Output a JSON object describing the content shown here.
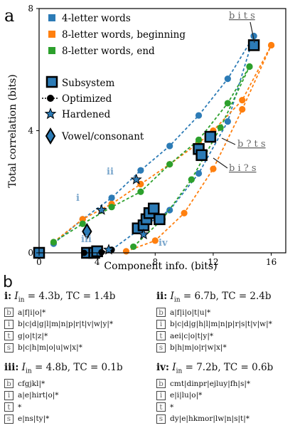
{
  "panel_a_label": "a",
  "panel_b_label": "b",
  "legend": {
    "series": [
      "4-letter words",
      "8-letter words, beginning",
      "8-letter words, end"
    ],
    "markers": [
      "Subsystem",
      "Optimized",
      "Hardened",
      "Vowel/consonant"
    ]
  },
  "annotations": {
    "bits": "b i t s",
    "b_ts": "b ? t s",
    "bi_s": "b i ? s",
    "roman": [
      "i",
      "ii",
      "iii",
      "iv"
    ]
  },
  "colors": {
    "blue": "#2c7bb6",
    "orange": "#ff7f0e",
    "green": "#2ca02c",
    "label_blue": "#7aa6cc"
  },
  "chart_data": {
    "type": "scatter",
    "xlabel": "Component info. (bits)",
    "ylabel": "Total correlation (bits)",
    "xlim": [
      0,
      17
    ],
    "ylim": [
      0,
      8
    ],
    "xticks": [
      "0",
      "4",
      "8",
      "12",
      "16"
    ],
    "yticks": [
      "0",
      "4",
      "8"
    ],
    "series": [
      {
        "name": "4-letter words",
        "color": "blue",
        "x": [
          1,
          3,
          5,
          7,
          9,
          11,
          13,
          14.8
        ],
        "y": [
          0.3,
          1.1,
          1.8,
          2.7,
          3.5,
          4.5,
          5.7,
          7.1
        ]
      },
      {
        "name": "",
        "color": "blue",
        "x": [
          5,
          7,
          9,
          11,
          13,
          14.8
        ],
        "y": [
          0.1,
          0.8,
          1.4,
          2.6,
          4.3,
          7.1
        ]
      },
      {
        "name": "8-letter words, beginning",
        "color": "orange",
        "x": [
          1,
          3,
          5,
          7,
          9,
          11,
          12,
          14,
          16
        ],
        "y": [
          0.35,
          1.1,
          1.6,
          2.25,
          2.9,
          3.6,
          4.0,
          5.0,
          6.8
        ]
      },
      {
        "name": "",
        "color": "orange",
        "x": [
          6,
          8,
          10,
          12,
          14,
          16
        ],
        "y": [
          0.05,
          0.4,
          1.3,
          2.75,
          4.7,
          6.8
        ]
      },
      {
        "name": "8-letter words, end",
        "color": "green",
        "x": [
          1,
          3,
          5,
          7,
          9,
          11,
          13,
          14.5
        ],
        "y": [
          0.35,
          0.95,
          1.5,
          2.0,
          2.9,
          3.7,
          4.9,
          6.1
        ]
      },
      {
        "name": "",
        "color": "green",
        "x": [
          6.5,
          8.5,
          10.5,
          12.5,
          14.5
        ],
        "y": [
          0.2,
          1.1,
          2.4,
          4.1,
          6.1
        ]
      }
    ],
    "subsystem_points": [
      {
        "x": 0,
        "y": 0
      },
      {
        "x": 3.3,
        "y": 0
      },
      {
        "x": 3.8,
        "y": 0
      },
      {
        "x": 4.0,
        "y": 0.05
      },
      {
        "x": 6.8,
        "y": 0.8
      },
      {
        "x": 7.2,
        "y": 0.9
      },
      {
        "x": 7.4,
        "y": 1.1
      },
      {
        "x": 7.6,
        "y": 1.3
      },
      {
        "x": 7.9,
        "y": 1.45
      },
      {
        "x": 8.3,
        "y": 1.1
      },
      {
        "x": 11.0,
        "y": 3.4
      },
      {
        "x": 11.2,
        "y": 3.2
      },
      {
        "x": 11.8,
        "y": 3.8
      },
      {
        "x": 14.8,
        "y": 6.8
      }
    ],
    "optimized_points": [
      {
        "x": 3.1,
        "y": 0
      },
      {
        "x": 4.3,
        "y": 0.02
      },
      {
        "x": 5.0,
        "y": 0.1
      }
    ],
    "optimized_paths": [
      {
        "x": [
          3.1,
          4.3
        ],
        "y": [
          0,
          0.02
        ]
      },
      {
        "x": [
          4.3,
          5.0
        ],
        "y": [
          0.02,
          0.1
        ]
      }
    ],
    "hardened_points": [
      {
        "x": 4.3,
        "y": 1.4
      },
      {
        "x": 6.7,
        "y": 2.4
      },
      {
        "x": 4.8,
        "y": 0.1
      },
      {
        "x": 7.2,
        "y": 0.6
      }
    ],
    "vowel_consonant_points": [
      {
        "x": 3.3,
        "y": 0.7
      }
    ]
  },
  "part_b": [
    {
      "id": "i",
      "label": "i:",
      "iin": "4.3b",
      "tc": "1.4b",
      "rows": [
        {
          "letter": "b",
          "options": "a|f|i|o|*"
        },
        {
          "letter": "i",
          "options": "b|c|d|g|l|m|n|p|r|t|v|w|y|*"
        },
        {
          "letter": "t",
          "options": "g|o|t|z|*"
        },
        {
          "letter": "s",
          "options": "b|c|h|m|o|u|w|x|*"
        }
      ]
    },
    {
      "id": "ii",
      "label": "ii:",
      "iin": "6.7b",
      "tc": "2.4b",
      "rows": [
        {
          "letter": "b",
          "options": "a|f|i|o|t|u|*"
        },
        {
          "letter": "i",
          "options": "b|c|d|g|h|l|m|n|p|r|s|t|v|w|*"
        },
        {
          "letter": "t",
          "options": "aei|c|o|t|y|*"
        },
        {
          "letter": "s",
          "options": "b|h|m|o|r|w|x|*"
        }
      ]
    },
    {
      "id": "iii",
      "label": "iii:",
      "iin": "4.8b",
      "tc": "0.1b",
      "rows": [
        {
          "letter": "b",
          "options": "cfgjkl|*"
        },
        {
          "letter": "i",
          "options": "a|e|hirt|o|*"
        },
        {
          "letter": "t",
          "options": "*"
        },
        {
          "letter": "s",
          "options": "e|ns|ty|*"
        }
      ]
    },
    {
      "id": "iv",
      "label": "iv:",
      "iin": "7.2b",
      "tc": "0.6b",
      "rows": [
        {
          "letter": "b",
          "options": "cmt|dinpr|ejluy|fh|s|*"
        },
        {
          "letter": "i",
          "options": "e|i|lu|o|*"
        },
        {
          "letter": "t",
          "options": "*"
        },
        {
          "letter": "s",
          "options": "dy|e|hkmor|lw|n|s|t|*"
        }
      ]
    }
  ]
}
